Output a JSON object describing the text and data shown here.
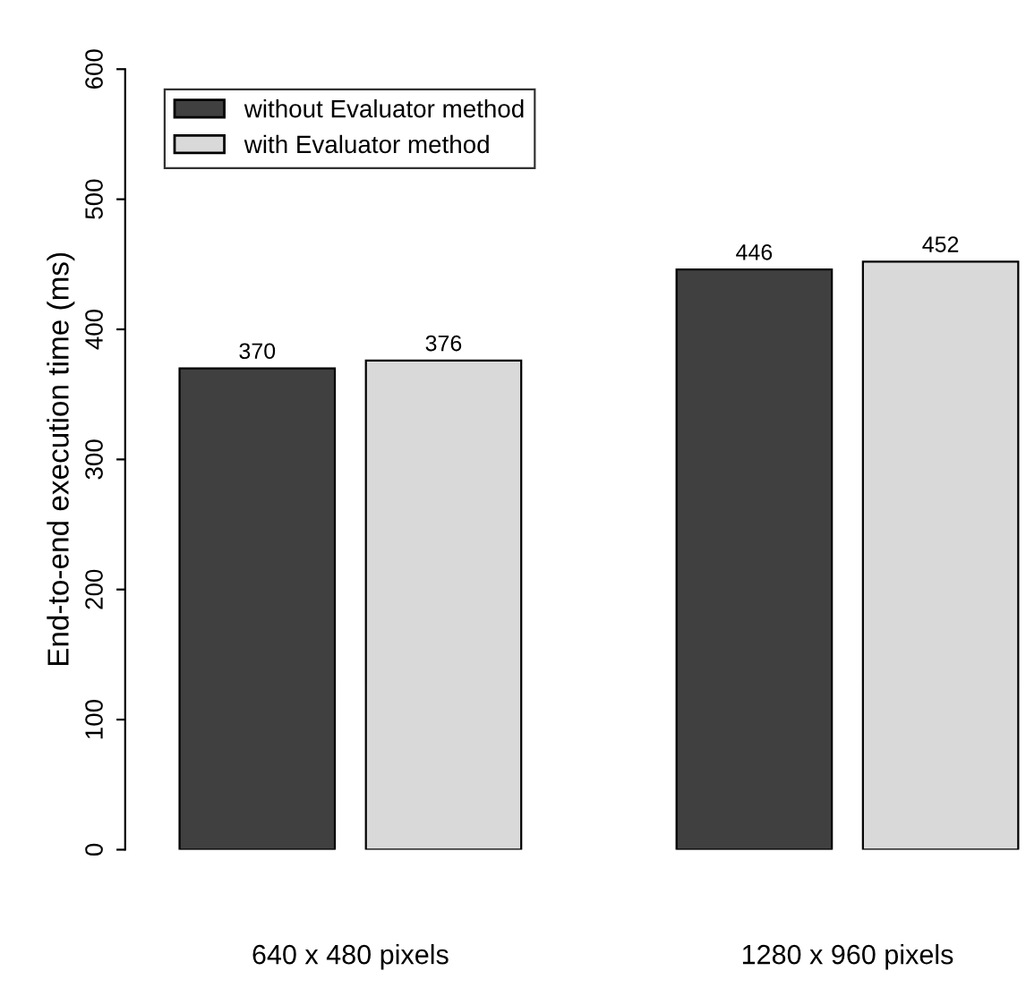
{
  "chart_data": {
    "type": "bar",
    "ylabel": "End-to-end execution time (ms)",
    "categories": [
      "640 x 480 pixels",
      "1280 x 960 pixels"
    ],
    "series": [
      {
        "name": "without Evaluator method",
        "color": "#404040",
        "values": [
          370,
          446
        ]
      },
      {
        "name": "with Evaluator method",
        "color": "#d9d9d9",
        "values": [
          376,
          452
        ]
      }
    ],
    "ylim": [
      0,
      600
    ],
    "yticks": [
      0,
      100,
      200,
      300,
      400,
      500,
      600
    ],
    "data_labels": true,
    "legend": "top left",
    "grid": false
  }
}
